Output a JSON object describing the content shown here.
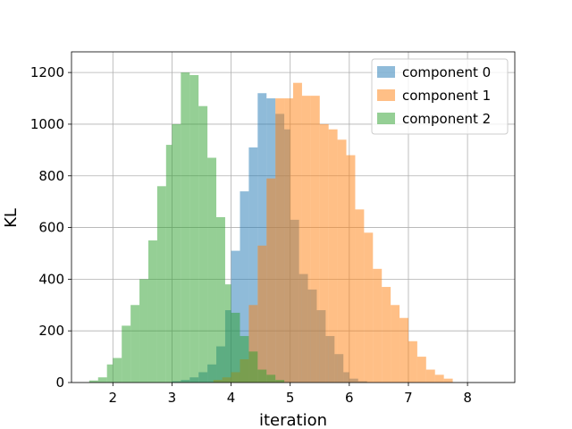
{
  "chart_data": {
    "type": "bar",
    "subtype": "overlapping-histogram",
    "title": "",
    "xlabel": "iteration",
    "ylabel": "KL",
    "xlim": [
      1.3,
      8.8
    ],
    "ylim": [
      0,
      1280
    ],
    "xticks": [
      2,
      3,
      4,
      5,
      6,
      7,
      8
    ],
    "yticks": [
      0,
      200,
      400,
      600,
      800,
      1000,
      1200
    ],
    "grid": true,
    "legend_position": "top-right",
    "series": [
      {
        "name": "component 0",
        "color": "#1f77b4",
        "opacity": 0.5,
        "bins": [
          [
            3.0,
            3.15,
            5
          ],
          [
            3.15,
            3.3,
            10
          ],
          [
            3.3,
            3.45,
            20
          ],
          [
            3.45,
            3.6,
            40
          ],
          [
            3.6,
            3.75,
            70
          ],
          [
            3.75,
            3.9,
            140
          ],
          [
            3.9,
            4.0,
            280
          ],
          [
            4.0,
            4.15,
            510
          ],
          [
            4.15,
            4.3,
            740
          ],
          [
            4.3,
            4.45,
            910
          ],
          [
            4.45,
            4.6,
            1120
          ],
          [
            4.6,
            4.75,
            1100
          ],
          [
            4.75,
            4.9,
            1040
          ],
          [
            4.9,
            5.0,
            980
          ],
          [
            5.0,
            5.15,
            630
          ],
          [
            5.15,
            5.3,
            420
          ],
          [
            5.3,
            5.45,
            360
          ],
          [
            5.45,
            5.6,
            280
          ],
          [
            5.6,
            5.75,
            180
          ],
          [
            5.75,
            5.9,
            110
          ],
          [
            5.9,
            6.0,
            40
          ],
          [
            6.0,
            6.15,
            15
          ],
          [
            6.15,
            6.3,
            5
          ]
        ]
      },
      {
        "name": "component 1",
        "color": "#ff7f0e",
        "opacity": 0.5,
        "bins": [
          [
            3.7,
            3.85,
            10
          ],
          [
            3.85,
            4.0,
            20
          ],
          [
            4.0,
            4.15,
            40
          ],
          [
            4.15,
            4.3,
            90
          ],
          [
            4.3,
            4.45,
            300
          ],
          [
            4.45,
            4.6,
            530
          ],
          [
            4.6,
            4.75,
            790
          ],
          [
            4.75,
            4.9,
            1100
          ],
          [
            4.9,
            5.05,
            1100
          ],
          [
            5.05,
            5.2,
            1160
          ],
          [
            5.2,
            5.35,
            1110
          ],
          [
            5.35,
            5.5,
            1110
          ],
          [
            5.5,
            5.65,
            1000
          ],
          [
            5.65,
            5.8,
            980
          ],
          [
            5.8,
            5.95,
            940
          ],
          [
            5.95,
            6.1,
            880
          ],
          [
            6.1,
            6.25,
            670
          ],
          [
            6.25,
            6.4,
            580
          ],
          [
            6.4,
            6.55,
            440
          ],
          [
            6.55,
            6.7,
            370
          ],
          [
            6.7,
            6.85,
            300
          ],
          [
            6.85,
            7.0,
            250
          ],
          [
            7.0,
            7.15,
            160
          ],
          [
            7.15,
            7.3,
            100
          ],
          [
            7.3,
            7.45,
            50
          ],
          [
            7.45,
            7.6,
            30
          ],
          [
            7.6,
            7.75,
            15
          ]
        ]
      },
      {
        "name": "component 2",
        "color": "#2ca02c",
        "opacity": 0.5,
        "bins": [
          [
            1.6,
            1.75,
            8
          ],
          [
            1.75,
            1.9,
            20
          ],
          [
            1.9,
            2.0,
            70
          ],
          [
            2.0,
            2.15,
            95
          ],
          [
            2.15,
            2.3,
            220
          ],
          [
            2.3,
            2.45,
            300
          ],
          [
            2.45,
            2.6,
            400
          ],
          [
            2.6,
            2.75,
            550
          ],
          [
            2.75,
            2.9,
            760
          ],
          [
            2.9,
            3.0,
            920
          ],
          [
            3.0,
            3.15,
            1000
          ],
          [
            3.15,
            3.3,
            1200
          ],
          [
            3.3,
            3.45,
            1190
          ],
          [
            3.45,
            3.6,
            1070
          ],
          [
            3.6,
            3.75,
            870
          ],
          [
            3.75,
            3.9,
            640
          ],
          [
            3.9,
            4.0,
            380
          ],
          [
            4.0,
            4.15,
            270
          ],
          [
            4.15,
            4.3,
            180
          ],
          [
            4.3,
            4.45,
            120
          ],
          [
            4.45,
            4.6,
            50
          ],
          [
            4.6,
            4.75,
            30
          ],
          [
            4.75,
            4.9,
            10
          ]
        ]
      }
    ]
  }
}
